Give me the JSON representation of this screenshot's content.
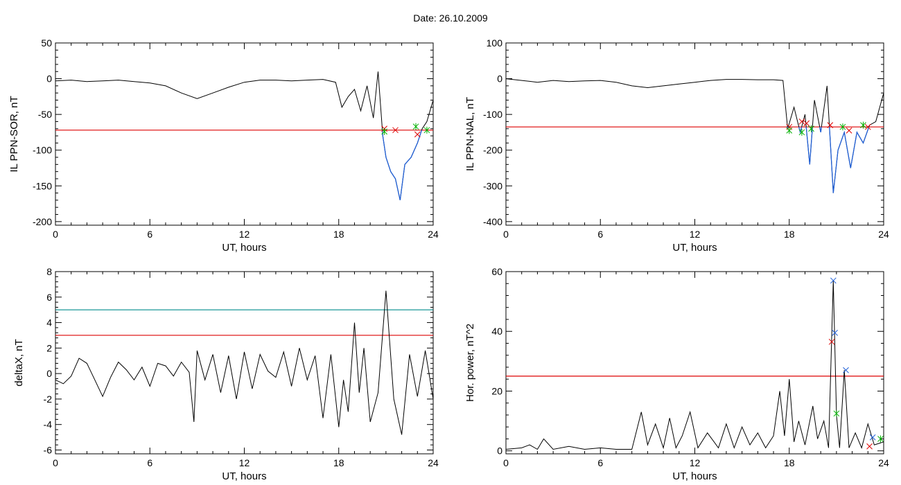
{
  "title": "Date:  26.10.2009",
  "colors": {
    "curve": "#000000",
    "threshold_red": "#dd0000",
    "threshold_teal": "#008b8b",
    "highlight_blue": "#1f5fd6",
    "marker_red": "#dd0000",
    "marker_green": "#00b000",
    "marker_blue": "#1f5fd6"
  },
  "chart_data": [
    {
      "type": "line",
      "xlabel": "UT, hours",
      "ylabel": "IL PPN-SOR, nT",
      "xlim": [
        0,
        24
      ],
      "ylim": [
        -205,
        50
      ],
      "xticks": [
        0,
        6,
        12,
        18,
        24
      ],
      "yticks": [
        50,
        0,
        -50,
        -100,
        -150,
        -200
      ],
      "threshold": {
        "value": -72,
        "color": "red"
      },
      "series": [
        {
          "x": [
            0,
            1,
            2,
            3,
            4,
            5,
            6,
            7,
            8,
            9,
            10,
            11,
            12,
            13,
            14,
            15,
            16,
            17,
            17.8,
            18.2,
            18.6,
            19.0,
            19.4,
            19.8,
            20.2,
            20.5,
            20.8,
            21.0,
            21.3,
            21.6,
            21.9,
            22.2,
            22.6,
            23.0,
            23.3,
            23.6,
            24.0
          ],
          "y": [
            -3,
            -2,
            -4,
            -3,
            -2,
            -4,
            -6,
            -10,
            -20,
            -28,
            -20,
            -12,
            -5,
            -2,
            -2,
            -3,
            -2,
            -1,
            -5,
            -40,
            -25,
            -15,
            -45,
            -10,
            -55,
            10,
            -80,
            -110,
            -130,
            -140,
            -170,
            -120,
            -110,
            -90,
            -70,
            -60,
            -30
          ]
        }
      ],
      "markers": [
        {
          "x": 20.9,
          "y": -70,
          "color": "red"
        },
        {
          "x": 21.6,
          "y": -72,
          "color": "red"
        },
        {
          "x": 23.0,
          "y": -78,
          "color": "red"
        },
        {
          "x": 20.9,
          "y": -74,
          "color": "green"
        },
        {
          "x": 22.9,
          "y": -67,
          "color": "green"
        },
        {
          "x": 23.6,
          "y": -72,
          "color": "green"
        }
      ]
    },
    {
      "type": "line",
      "xlabel": "UT, hours",
      "ylabel": "IL PPN-NAL, nT",
      "xlim": [
        0,
        24
      ],
      "ylim": [
        -410,
        100
      ],
      "xticks": [
        0,
        6,
        12,
        18,
        24
      ],
      "yticks": [
        100,
        0,
        -100,
        -200,
        -300,
        -400
      ],
      "threshold": {
        "value": -135,
        "color": "red"
      },
      "series": [
        {
          "x": [
            0,
            1,
            2,
            3,
            4,
            5,
            6,
            7,
            8,
            9,
            10,
            11,
            12,
            13,
            14,
            15,
            16,
            17,
            17.6,
            17.9,
            18.3,
            18.7,
            19.0,
            19.3,
            19.6,
            20.0,
            20.4,
            20.8,
            21.1,
            21.5,
            21.9,
            22.3,
            22.7,
            23.1,
            23.5,
            24.0
          ],
          "y": [
            0,
            -5,
            -10,
            -5,
            -8,
            -6,
            -5,
            -10,
            -20,
            -25,
            -20,
            -15,
            -10,
            -5,
            -2,
            -2,
            -3,
            -3,
            -5,
            -140,
            -80,
            -150,
            -100,
            -240,
            -60,
            -150,
            -20,
            -320,
            -200,
            -150,
            -250,
            -150,
            -180,
            -130,
            -120,
            -40
          ]
        }
      ],
      "markers": [
        {
          "x": 18.0,
          "y": -135,
          "color": "red"
        },
        {
          "x": 18.8,
          "y": -120,
          "color": "red"
        },
        {
          "x": 19.1,
          "y": -125,
          "color": "red"
        },
        {
          "x": 20.6,
          "y": -130,
          "color": "red"
        },
        {
          "x": 21.8,
          "y": -145,
          "color": "red"
        },
        {
          "x": 23.0,
          "y": -135,
          "color": "red"
        },
        {
          "x": 18.0,
          "y": -145,
          "color": "green"
        },
        {
          "x": 18.8,
          "y": -150,
          "color": "green"
        },
        {
          "x": 19.4,
          "y": -140,
          "color": "green"
        },
        {
          "x": 21.4,
          "y": -135,
          "color": "green"
        },
        {
          "x": 22.7,
          "y": -130,
          "color": "green"
        }
      ]
    },
    {
      "type": "line",
      "xlabel": "UT, hours",
      "ylabel": "deltaX, nT",
      "xlim": [
        0,
        24
      ],
      "ylim": [
        -6.3,
        8
      ],
      "xticks": [
        0,
        6,
        12,
        18,
        24
      ],
      "yticks": [
        8,
        6,
        4,
        2,
        0,
        -2,
        -4,
        -6
      ],
      "thresholds": [
        {
          "value": 5,
          "color": "teal"
        },
        {
          "value": 3,
          "color": "red"
        }
      ],
      "series": [
        {
          "x": [
            0,
            0.5,
            1,
            1.5,
            2,
            2.5,
            3,
            3.5,
            4,
            4.5,
            5,
            5.5,
            6,
            6.5,
            7,
            7.5,
            8,
            8.5,
            8.8,
            9,
            9.5,
            10,
            10.5,
            11,
            11.5,
            12,
            12.5,
            13,
            13.5,
            14,
            14.5,
            15,
            15.5,
            16,
            16.5,
            17,
            17.5,
            18,
            18.3,
            18.6,
            19,
            19.3,
            19.6,
            20,
            20.5,
            21,
            21.5,
            22,
            22.5,
            23,
            23.5,
            24
          ],
          "y": [
            -0.5,
            -0.8,
            -0.2,
            1.2,
            0.8,
            -0.5,
            -1.8,
            -0.3,
            0.9,
            0.3,
            -0.5,
            0.5,
            -1,
            0.8,
            0.6,
            -0.2,
            0.9,
            0.1,
            -3.8,
            1.8,
            -0.5,
            1.5,
            -1.5,
            1.4,
            -2,
            1.7,
            -1.2,
            1.5,
            0.2,
            -0.3,
            1.7,
            -1,
            2,
            -0.5,
            1.4,
            -3.5,
            1.5,
            -4.2,
            -0.5,
            -3,
            4,
            -1.5,
            2,
            -3.8,
            -1.5,
            6.5,
            -2,
            -4.8,
            1.5,
            -1.8,
            1.8,
            -2
          ]
        }
      ]
    },
    {
      "type": "line",
      "xlabel": "UT, hours",
      "ylabel": "Hor. power, nT^2",
      "xlim": [
        0,
        24
      ],
      "ylim": [
        -1,
        60
      ],
      "xticks": [
        0,
        6,
        12,
        18,
        24
      ],
      "yticks": [
        60,
        40,
        20,
        0
      ],
      "threshold": {
        "value": 25,
        "color": "red"
      },
      "series": [
        {
          "x": [
            0,
            1,
            1.5,
            2,
            2.4,
            3,
            4,
            5,
            6,
            7,
            8,
            8.6,
            9,
            9.5,
            10,
            10.4,
            10.8,
            11.2,
            11.7,
            12.2,
            12.8,
            13.5,
            14,
            14.5,
            15,
            15.5,
            16,
            16.5,
            17,
            17.4,
            17.7,
            18,
            18.3,
            18.6,
            19,
            19.5,
            19.8,
            20.2,
            20.5,
            20.8,
            21.0,
            21.2,
            21.5,
            21.8,
            22.2,
            22.6,
            23.0,
            23.4,
            24
          ],
          "y": [
            0.5,
            1,
            2,
            0.5,
            4,
            0.5,
            1.5,
            0.5,
            1,
            0.5,
            0.5,
            13,
            2,
            9,
            1,
            11,
            1,
            5,
            13,
            1,
            6,
            1,
            9,
            1,
            8,
            2,
            6,
            1,
            5,
            20,
            5,
            24,
            3,
            10,
            2,
            15,
            4,
            10,
            1,
            57,
            12,
            1,
            27,
            1,
            6,
            1,
            9,
            2,
            3
          ]
        }
      ],
      "markers": [
        {
          "x": 20.8,
          "y": 57,
          "color": "blue"
        },
        {
          "x": 20.9,
          "y": 39.5,
          "color": "blue"
        },
        {
          "x": 21.6,
          "y": 27,
          "color": "blue"
        },
        {
          "x": 23.3,
          "y": 4.5,
          "color": "blue"
        },
        {
          "x": 20.7,
          "y": 36.5,
          "color": "red"
        },
        {
          "x": 23.1,
          "y": 1.5,
          "color": "red"
        },
        {
          "x": 21.0,
          "y": 12.5,
          "color": "green"
        },
        {
          "x": 23.8,
          "y": 4,
          "color": "green"
        }
      ]
    }
  ]
}
